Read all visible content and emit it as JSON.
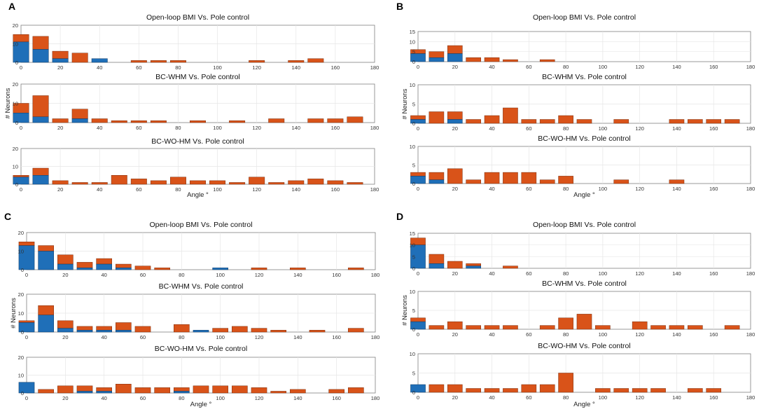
{
  "colors": {
    "blue": "#1f6fb8",
    "orange": "#d95319",
    "grid": "#e6e6e6",
    "axis": "#7f7f7f"
  },
  "x_label": "Angle °",
  "y_label": "# Neurons",
  "chart_data": [
    {
      "panel": "A",
      "x_ticks": [
        0,
        20,
        40,
        60,
        80,
        100,
        120,
        140,
        160,
        180
      ],
      "subplots": [
        {
          "type": "bar",
          "title": "Open-loop BMI Vs. Pole control",
          "ylim": [
            0,
            20
          ],
          "y_ticks": [
            0,
            10,
            20
          ],
          "x": [
            0,
            10,
            20,
            30,
            40,
            50,
            60,
            70,
            80,
            90,
            100,
            110,
            120,
            130,
            140,
            150,
            160,
            170
          ],
          "series": [
            {
              "name": "blue",
              "values": [
                11,
                7,
                2,
                0,
                2,
                0,
                0,
                0,
                0,
                0,
                0,
                0,
                0,
                0,
                0,
                0,
                0,
                0
              ]
            },
            {
              "name": "total",
              "values": [
                15,
                14,
                6,
                5,
                2,
                0,
                1,
                1,
                1,
                0,
                0,
                0,
                1,
                0,
                1,
                2,
                0,
                0
              ]
            }
          ]
        },
        {
          "type": "bar",
          "title": "BC-WHM Vs. Pole control",
          "ylim": [
            0,
            20
          ],
          "y_ticks": [
            0,
            10,
            20
          ],
          "x": [
            0,
            10,
            20,
            30,
            40,
            50,
            60,
            70,
            80,
            90,
            100,
            110,
            120,
            130,
            140,
            150,
            160,
            170
          ],
          "series": [
            {
              "name": "blue",
              "values": [
                5,
                3,
                0,
                2,
                0,
                0,
                0,
                0,
                0,
                0,
                0,
                0,
                0,
                0,
                0,
                0,
                0,
                0
              ]
            },
            {
              "name": "total",
              "values": [
                10,
                14,
                2,
                7,
                2,
                1,
                1,
                1,
                0,
                1,
                0,
                1,
                0,
                2,
                0,
                2,
                2,
                3
              ]
            }
          ]
        },
        {
          "type": "bar",
          "title": "BC-WO-HM Vs. Pole control",
          "ylim": [
            0,
            20
          ],
          "y_ticks": [
            0,
            10,
            20
          ],
          "x": [
            0,
            10,
            20,
            30,
            40,
            50,
            60,
            70,
            80,
            90,
            100,
            110,
            120,
            130,
            140,
            150,
            160,
            170
          ],
          "series": [
            {
              "name": "blue",
              "values": [
                4,
                5,
                0,
                0,
                0,
                0,
                0,
                0,
                0,
                0,
                0,
                0,
                0,
                0,
                0,
                0,
                0,
                0
              ]
            },
            {
              "name": "total",
              "values": [
                5,
                9,
                2,
                1,
                1,
                5,
                3,
                2,
                4,
                2,
                2,
                1,
                4,
                1,
                2,
                3,
                2,
                1
              ]
            }
          ]
        }
      ]
    },
    {
      "panel": "B",
      "x_ticks": [
        0,
        20,
        40,
        60,
        80,
        100,
        120,
        140,
        160,
        180
      ],
      "subplots": [
        {
          "type": "bar",
          "title": "Open-loop BMI Vs. Pole control",
          "ylim": [
            0,
            15
          ],
          "y_ticks": [
            0,
            5,
            10,
            15
          ],
          "x": [
            0,
            10,
            20,
            30,
            40,
            50,
            60,
            70,
            80,
            90,
            100,
            110,
            120,
            130,
            140,
            150,
            160,
            170
          ],
          "series": [
            {
              "name": "blue",
              "values": [
                4,
                2,
                4,
                0,
                0,
                0,
                0,
                0,
                0,
                0,
                0,
                0,
                0,
                0,
                0,
                0,
                0,
                0
              ]
            },
            {
              "name": "total",
              "values": [
                6,
                5,
                8,
                2,
                2,
                1,
                0,
                1,
                0,
                0,
                0,
                0,
                0,
                0,
                0,
                0,
                0,
                0
              ]
            }
          ]
        },
        {
          "type": "bar",
          "title": "BC-WHM Vs. Pole control",
          "ylim": [
            0,
            10
          ],
          "y_ticks": [
            0,
            5,
            10
          ],
          "x": [
            0,
            10,
            20,
            30,
            40,
            50,
            60,
            70,
            80,
            90,
            100,
            110,
            120,
            130,
            140,
            150,
            160,
            170
          ],
          "series": [
            {
              "name": "blue",
              "values": [
                1,
                0,
                1,
                0,
                0,
                0,
                0,
                0,
                0,
                0,
                0,
                0,
                0,
                0,
                0,
                0,
                0,
                0
              ]
            },
            {
              "name": "total",
              "values": [
                2,
                3,
                3,
                1,
                2,
                4,
                1,
                1,
                2,
                1,
                0,
                1,
                0,
                0,
                1,
                1,
                1,
                1
              ]
            }
          ]
        },
        {
          "type": "bar",
          "title": "BC-WO-HM Vs. Pole control",
          "ylim": [
            0,
            10
          ],
          "y_ticks": [
            0,
            5,
            10
          ],
          "x": [
            0,
            10,
            20,
            30,
            40,
            50,
            60,
            70,
            80,
            90,
            100,
            110,
            120,
            130,
            140,
            150,
            160,
            170
          ],
          "series": [
            {
              "name": "blue",
              "values": [
                2,
                1,
                0,
                0,
                0,
                0,
                0,
                0,
                0,
                0,
                0,
                0,
                0,
                0,
                0,
                0,
                0,
                0
              ]
            },
            {
              "name": "total",
              "values": [
                3,
                3,
                4,
                1,
                3,
                3,
                3,
                1,
                2,
                0,
                0,
                1,
                0,
                0,
                1,
                0,
                0,
                0
              ]
            }
          ]
        }
      ]
    },
    {
      "panel": "C",
      "x_ticks": [
        0,
        20,
        40,
        60,
        80,
        100,
        120,
        140,
        160,
        180
      ],
      "subplots": [
        {
          "type": "bar",
          "title": "Open-loop BMI Vs. Pole control",
          "ylim": [
            0,
            20
          ],
          "y_ticks": [
            0,
            10,
            20
          ],
          "x": [
            0,
            10,
            20,
            30,
            40,
            50,
            60,
            70,
            80,
            90,
            100,
            110,
            120,
            130,
            140,
            150,
            160,
            170
          ],
          "series": [
            {
              "name": "blue",
              "values": [
                13,
                10,
                3,
                1,
                3,
                1,
                0,
                0,
                0,
                0,
                1,
                0,
                0,
                0,
                0,
                0,
                0,
                0
              ]
            },
            {
              "name": "total",
              "values": [
                15,
                13,
                8,
                4,
                6,
                3,
                2,
                1,
                0,
                0,
                1,
                0,
                1,
                0,
                1,
                0,
                0,
                1
              ]
            }
          ]
        },
        {
          "type": "bar",
          "title": "BC-WHM Vs. Pole control",
          "ylim": [
            0,
            20
          ],
          "y_ticks": [
            0,
            10,
            20
          ],
          "x": [
            0,
            10,
            20,
            30,
            40,
            50,
            60,
            70,
            80,
            90,
            100,
            110,
            120,
            130,
            140,
            150,
            160,
            170
          ],
          "series": [
            {
              "name": "blue",
              "values": [
                5,
                9,
                2,
                1,
                1,
                1,
                0,
                0,
                0,
                1,
                0,
                0,
                0,
                0,
                0,
                0,
                0,
                0
              ]
            },
            {
              "name": "total",
              "values": [
                6,
                14,
                6,
                3,
                3,
                5,
                3,
                0,
                4,
                1,
                2,
                3,
                2,
                1,
                0,
                1,
                0,
                2
              ]
            }
          ]
        },
        {
          "type": "bar",
          "title": "BC-WO-HM Vs. Pole control",
          "ylim": [
            0,
            20
          ],
          "y_ticks": [
            0,
            10,
            20
          ],
          "x": [
            0,
            10,
            20,
            30,
            40,
            50,
            60,
            70,
            80,
            90,
            100,
            110,
            120,
            130,
            140,
            150,
            160,
            170
          ],
          "series": [
            {
              "name": "blue",
              "values": [
                6,
                0,
                0,
                1,
                1,
                0,
                0,
                0,
                1,
                0,
                0,
                0,
                0,
                0,
                0,
                0,
                0,
                0
              ]
            },
            {
              "name": "total",
              "values": [
                6,
                2,
                4,
                4,
                3,
                5,
                3,
                3,
                3,
                4,
                4,
                4,
                3,
                1,
                2,
                0,
                2,
                3
              ]
            }
          ]
        }
      ]
    },
    {
      "panel": "D",
      "x_ticks": [
        0,
        20,
        40,
        60,
        80,
        100,
        120,
        140,
        160,
        180
      ],
      "subplots": [
        {
          "type": "bar",
          "title": "Open-loop BMI Vs. Pole control",
          "ylim": [
            0,
            15
          ],
          "y_ticks": [
            0,
            5,
            10,
            15
          ],
          "x": [
            0,
            10,
            20,
            30,
            40,
            50,
            60,
            70,
            80,
            90,
            100,
            110,
            120,
            130,
            140,
            150,
            160,
            170
          ],
          "series": [
            {
              "name": "blue",
              "values": [
                10,
                2,
                0,
                1,
                0,
                0,
                0,
                0,
                0,
                0,
                0,
                0,
                0,
                0,
                0,
                0,
                0,
                0
              ]
            },
            {
              "name": "total",
              "values": [
                13,
                6,
                3,
                2,
                0,
                1,
                0,
                0,
                0,
                0,
                0,
                0,
                0,
                0,
                0,
                0,
                0,
                0
              ]
            }
          ]
        },
        {
          "type": "bar",
          "title": "BC-WHM Vs. Pole control",
          "ylim": [
            0,
            10
          ],
          "y_ticks": [
            0,
            5,
            10
          ],
          "x": [
            0,
            10,
            20,
            30,
            40,
            50,
            60,
            70,
            80,
            90,
            100,
            110,
            120,
            130,
            140,
            150,
            160,
            170
          ],
          "series": [
            {
              "name": "blue",
              "values": [
                2,
                0,
                0,
                0,
                0,
                0,
                0,
                0,
                0,
                0,
                0,
                0,
                0,
                0,
                0,
                0,
                0,
                0
              ]
            },
            {
              "name": "total",
              "values": [
                3,
                1,
                2,
                1,
                1,
                1,
                0,
                1,
                3,
                4,
                1,
                0,
                2,
                1,
                1,
                1,
                0,
                1
              ]
            }
          ]
        },
        {
          "type": "bar",
          "title": "BC-WO-HM Vs. Pole control",
          "ylim": [
            0,
            10
          ],
          "y_ticks": [
            0,
            5,
            10
          ],
          "x": [
            0,
            10,
            20,
            30,
            40,
            50,
            60,
            70,
            80,
            90,
            100,
            110,
            120,
            130,
            140,
            150,
            160,
            170
          ],
          "series": [
            {
              "name": "blue",
              "values": [
                2,
                0,
                0,
                0,
                0,
                0,
                0,
                0,
                0,
                0,
                0,
                0,
                0,
                0,
                0,
                0,
                0,
                0
              ]
            },
            {
              "name": "total",
              "values": [
                2,
                2,
                2,
                1,
                1,
                1,
                2,
                2,
                5,
                0,
                1,
                1,
                1,
                1,
                0,
                1,
                1,
                0
              ]
            }
          ]
        }
      ]
    }
  ]
}
